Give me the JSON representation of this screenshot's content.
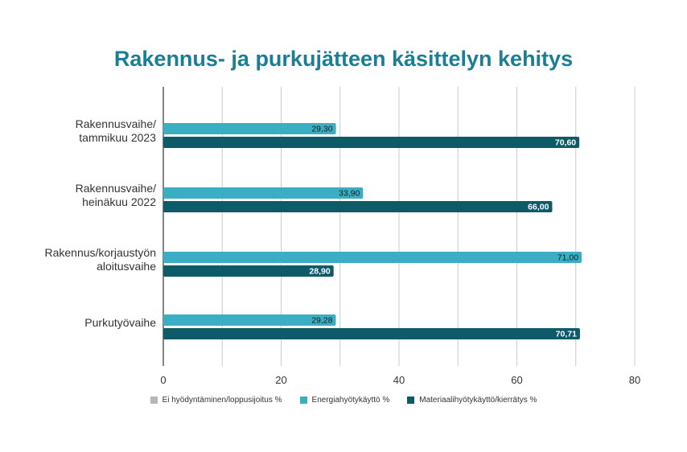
{
  "chart_data": {
    "type": "bar",
    "orientation": "horizontal",
    "title": "Rakennus- ja purkujätteen käsittelyn kehitys",
    "categories": [
      [
        "Rakennusvaihe/",
        "tammikuu 2023"
      ],
      [
        "Rakennusvaihe/",
        "heinäkuu 2022"
      ],
      [
        "Rakennus/korjaustyön",
        "aloitusvaihe"
      ],
      [
        "Purkutyövaihe"
      ]
    ],
    "series": [
      {
        "name": "Ei hyödyntäminen/loppusijoitus %",
        "color": "#b7b7b7",
        "values": [
          null,
          null,
          null,
          null
        ],
        "labels": [
          "",
          "",
          "",
          ""
        ]
      },
      {
        "name": "Energiahyötykäyttö %",
        "color": "#3aafc4",
        "values": [
          29.3,
          33.9,
          71.0,
          29.28
        ],
        "labels": [
          "29,30",
          "33,90",
          "71,00",
          "29,28"
        ]
      },
      {
        "name": "Materiaalihyötykäyttö/kierrätys %",
        "color": "#0d5a69",
        "values": [
          70.6,
          66.0,
          28.9,
          70.71
        ],
        "labels": [
          "70,60",
          "66,00",
          "28,90",
          "70,71"
        ]
      }
    ],
    "xlim": [
      0,
      80
    ],
    "xticks": [
      0,
      20,
      40,
      60,
      80
    ],
    "grid": true,
    "legend_position": "bottom"
  }
}
